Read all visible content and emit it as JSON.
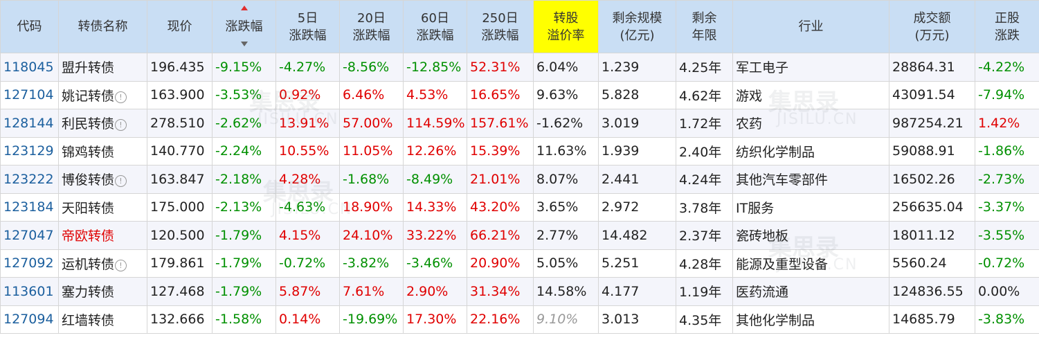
{
  "watermark": {
    "text": "集思录",
    "sub": "JISILU.CN"
  },
  "headers": [
    {
      "label": "代码"
    },
    {
      "label": "转债名称"
    },
    {
      "label": "现价"
    },
    {
      "label": "涨跌幅"
    },
    {
      "label": "5日\n涨跌幅"
    },
    {
      "label": "20日\n涨跌幅"
    },
    {
      "label": "60日\n涨跌幅"
    },
    {
      "label": "250日\n涨跌幅"
    },
    {
      "label": "转股\n溢价率"
    },
    {
      "label": "剩余规模\n(亿元)"
    },
    {
      "label": "剩余\n年限"
    },
    {
      "label": "行业"
    },
    {
      "label": "成交额\n(万元)"
    },
    {
      "label": "正股\n涨跌"
    }
  ],
  "rows": [
    {
      "code": "118045",
      "name": "盟升转债",
      "name_color": "black",
      "info": false,
      "price": "196.435",
      "chg": "-9.15%",
      "chg5": "-4.27%",
      "chg20": "-8.56%",
      "chg60": "-12.85%",
      "chg250": "52.31%",
      "premium": "6.04%",
      "premium_style": "normal",
      "scale": "1.239",
      "years": "4.25年",
      "industry": "军工电子",
      "volume": "28864.31",
      "stock_chg": "-4.22%"
    },
    {
      "code": "127104",
      "name": "姚记转债",
      "name_color": "black",
      "info": true,
      "price": "163.900",
      "chg": "-3.53%",
      "chg5": "0.92%",
      "chg20": "6.46%",
      "chg60": "4.53%",
      "chg250": "16.65%",
      "premium": "9.63%",
      "premium_style": "normal",
      "scale": "5.828",
      "years": "4.62年",
      "industry": "游戏",
      "volume": "43091.54",
      "stock_chg": "-7.94%"
    },
    {
      "code": "128144",
      "name": "利民转债",
      "name_color": "black",
      "info": true,
      "price": "278.510",
      "chg": "-2.62%",
      "chg5": "13.91%",
      "chg20": "57.00%",
      "chg60": "114.59%",
      "chg250": "157.61%",
      "premium": "-1.62%",
      "premium_style": "normal",
      "scale": "3.019",
      "years": "1.72年",
      "industry": "农药",
      "volume": "987254.21",
      "stock_chg": "1.42%"
    },
    {
      "code": "123129",
      "name": "锦鸡转债",
      "name_color": "black",
      "info": false,
      "price": "140.770",
      "chg": "-2.24%",
      "chg5": "10.55%",
      "chg20": "11.05%",
      "chg60": "12.26%",
      "chg250": "15.39%",
      "premium": "11.63%",
      "premium_style": "normal",
      "scale": "1.939",
      "years": "2.40年",
      "industry": "纺织化学制品",
      "volume": "59088.91",
      "stock_chg": "-1.86%"
    },
    {
      "code": "123222",
      "name": "博俊转债",
      "name_color": "black",
      "info": true,
      "price": "163.847",
      "chg": "-2.18%",
      "chg5": "4.28%",
      "chg20": "-1.68%",
      "chg60": "-8.49%",
      "chg250": "21.01%",
      "premium": "8.07%",
      "premium_style": "normal",
      "scale": "2.441",
      "years": "4.24年",
      "industry": "其他汽车零部件",
      "volume": "16502.26",
      "stock_chg": "-2.73%"
    },
    {
      "code": "123184",
      "name": "天阳转债",
      "name_color": "black",
      "info": false,
      "price": "175.000",
      "chg": "-2.13%",
      "chg5": "-4.63%",
      "chg20": "18.90%",
      "chg60": "14.33%",
      "chg250": "43.20%",
      "premium": "3.65%",
      "premium_style": "normal",
      "scale": "2.972",
      "years": "3.78年",
      "industry": "IT服务",
      "volume": "256635.04",
      "stock_chg": "-3.37%"
    },
    {
      "code": "127047",
      "name": "帝欧转债",
      "name_color": "red",
      "info": false,
      "price": "120.500",
      "chg": "-1.79%",
      "chg5": "4.15%",
      "chg20": "24.10%",
      "chg60": "33.22%",
      "chg250": "66.21%",
      "premium": "2.77%",
      "premium_style": "normal",
      "scale": "14.482",
      "years": "2.37年",
      "industry": "瓷砖地板",
      "volume": "18011.12",
      "stock_chg": "-3.55%"
    },
    {
      "code": "127092",
      "name": "运机转债",
      "name_color": "black",
      "info": true,
      "price": "179.861",
      "chg": "-1.79%",
      "chg5": "-0.72%",
      "chg20": "-3.82%",
      "chg60": "-3.46%",
      "chg250": "20.90%",
      "premium": "5.05%",
      "premium_style": "normal",
      "scale": "5.251",
      "years": "4.28年",
      "industry": "能源及重型设备",
      "volume": "5560.24",
      "stock_chg": "-0.72%"
    },
    {
      "code": "113601",
      "name": "塞力转债",
      "name_color": "black",
      "info": false,
      "price": "127.468",
      "chg": "-1.79%",
      "chg5": "5.87%",
      "chg20": "7.61%",
      "chg60": "2.90%",
      "chg250": "31.34%",
      "premium": "14.58%",
      "premium_style": "normal",
      "scale": "4.177",
      "years": "1.19年",
      "industry": "医药流通",
      "volume": "124836.55",
      "stock_chg": "0.00%"
    },
    {
      "code": "127094",
      "name": "红墙转债",
      "name_color": "black",
      "info": false,
      "price": "132.666",
      "chg": "-1.58%",
      "chg5": "0.14%",
      "chg20": "-19.69%",
      "chg60": "17.30%",
      "chg250": "22.16%",
      "premium": "9.10%",
      "premium_style": "italic",
      "scale": "3.013",
      "years": "4.35年",
      "industry": "其他化学制品",
      "volume": "14685.79",
      "stock_chg": "-3.83%"
    }
  ],
  "colors": {
    "header_bg": "#c9def4",
    "highlight": "#ffff00",
    "up": "#e00000",
    "down": "#009000",
    "code": "#1b5f9e"
  }
}
